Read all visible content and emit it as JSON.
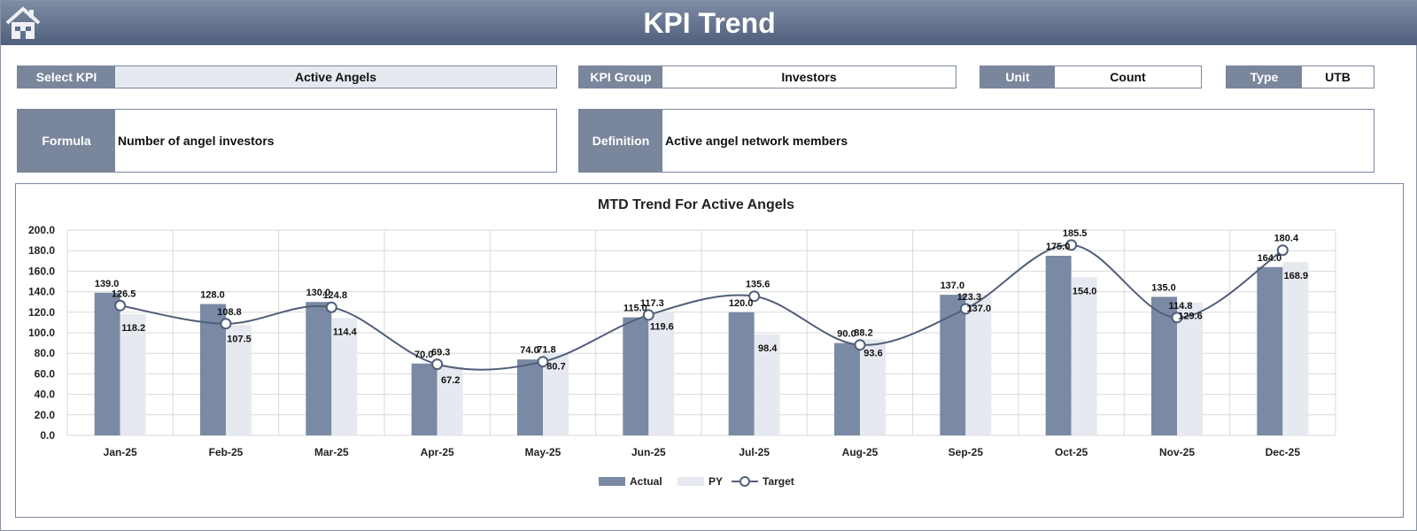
{
  "header": {
    "title": "KPI Trend",
    "home_icon": "home-icon"
  },
  "fields": {
    "select_kpi": {
      "label": "Select KPI",
      "value": "Active Angels"
    },
    "kpi_group": {
      "label": "KPI Group",
      "value": "Investors"
    },
    "unit": {
      "label": "Unit",
      "value": "Count"
    },
    "type": {
      "label": "Type",
      "value": "UTB"
    },
    "formula": {
      "label": "Formula",
      "value": "Number of angel investors"
    },
    "definition": {
      "label": "Definition",
      "value": "Active angel network members"
    }
  },
  "colors": {
    "actual": "#7a89a4",
    "py": "#e6e9ef",
    "target": "#505f78",
    "header": "#5f6e8a"
  },
  "chart_data": {
    "type": "bar",
    "title": "MTD Trend For Active Angels",
    "categories": [
      "Jan-25",
      "Feb-25",
      "Mar-25",
      "Apr-25",
      "May-25",
      "Jun-25",
      "Jul-25",
      "Aug-25",
      "Sep-25",
      "Oct-25",
      "Nov-25",
      "Dec-25"
    ],
    "ylim": [
      0,
      200
    ],
    "yticks": [
      "0.0",
      "20.0",
      "40.0",
      "60.0",
      "80.0",
      "100.0",
      "120.0",
      "140.0",
      "160.0",
      "180.0",
      "200.0"
    ],
    "grid": true,
    "legend": "bottom",
    "series": [
      {
        "name": "Actual",
        "type": "bar",
        "values": [
          139.0,
          128.0,
          130.0,
          70.0,
          74.0,
          115.0,
          120.0,
          90.0,
          137.0,
          175.0,
          135.0,
          164.0
        ]
      },
      {
        "name": "PY",
        "type": "bar",
        "values": [
          118.2,
          107.5,
          114.4,
          67.2,
          80.7,
          119.6,
          98.4,
          93.6,
          137.0,
          154.0,
          129.6,
          168.9
        ]
      },
      {
        "name": "Target",
        "type": "line",
        "values": [
          126.5,
          108.8,
          124.8,
          69.3,
          71.8,
          117.3,
          135.6,
          88.2,
          123.3,
          185.5,
          114.8,
          180.4
        ]
      }
    ]
  }
}
